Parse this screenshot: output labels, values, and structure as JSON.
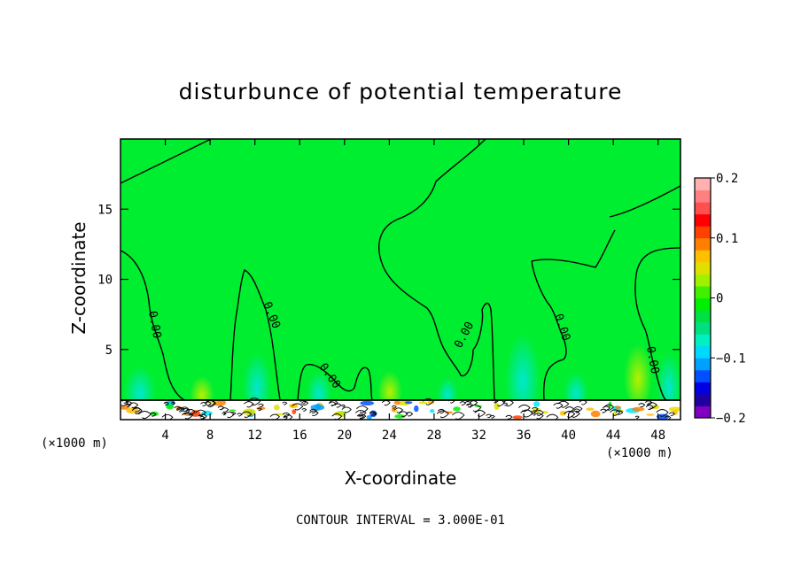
{
  "chart_data": {
    "type": "heatmap",
    "title": "disturbunce of potential temperature",
    "xlabel": "X-coordinate",
    "ylabel": "Z-coordinate",
    "x_unit_left": "(×1000 m)",
    "x_unit_right": "(×1000 m)",
    "xlim": [
      0,
      50
    ],
    "ylim": [
      0,
      20
    ],
    "x_ticks": [
      4,
      8,
      12,
      16,
      20,
      24,
      28,
      32,
      36,
      40,
      44,
      48
    ],
    "y_ticks": [
      5,
      10,
      15
    ],
    "colorbar": {
      "min": -0.2,
      "max": 0.2,
      "tick_values": [
        0.2,
        0.1,
        0,
        -0.1,
        -0.2
      ],
      "tick_labels": [
        "0.2",
        "0.1",
        "0",
        "−0.1",
        "−0.2"
      ],
      "colors": [
        "#8000c0",
        "#2000a0",
        "#0000e0",
        "#0050ff",
        "#00a0ff",
        "#00d8ff",
        "#00f0c0",
        "#00e080",
        "#00e040",
        "#00f000",
        "#40f000",
        "#a0f000",
        "#e0e000",
        "#ffc000",
        "#ff8000",
        "#ff4000",
        "#ff0000",
        "#ff5050",
        "#ff8080",
        "#ffb0b0"
      ]
    },
    "background_value": 0.0,
    "contour_label": "0.00",
    "contour_interval_text": "CONTOUR INTERVAL = 3.000E-01"
  }
}
